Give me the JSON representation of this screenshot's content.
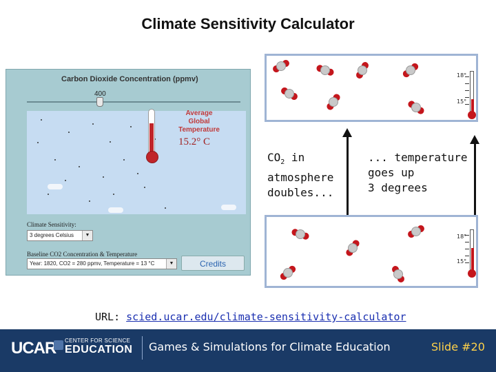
{
  "slide": {
    "title": "Climate Sensitivity Calculator"
  },
  "simulator": {
    "title": "Carbon Dioxide Concentration (ppmv)",
    "slider_value": "400",
    "avg_label_line1": "Average",
    "avg_label_line2": "Global",
    "avg_label_line3": "Temperature",
    "avg_temperature": "15.2° C",
    "sensitivity_label": "Climate Sensitivity:",
    "sensitivity_value": "3 degrees Celsius",
    "baseline_label": "Baseline CO2 Concentration & Temperature",
    "baseline_value": "Year: 1820, CO2 = 280 ppmv, Temperature = 13 °C",
    "credits_button": "Credits"
  },
  "diagram": {
    "top_thermo_high": "18°",
    "top_thermo_low": "15°",
    "bottom_thermo_high": "18°",
    "bottom_thermo_low": "15°",
    "left_caption_co2": "CO",
    "left_caption_sub": "2",
    "left_caption_rest": " in",
    "left_caption_line2": "atmosphere",
    "left_caption_line3": "doubles...",
    "right_caption_line1": "... temperature",
    "right_caption_line2": "goes up",
    "right_caption_line3": "3 degrees"
  },
  "url": {
    "prefix": "URL: ",
    "link": "scied.ucar.edu/climate-sensitivity-calculator"
  },
  "footer": {
    "logo": "UCAR",
    "center_line1": "CENTER FOR SCIENCE",
    "center_line2": "EDUCATION",
    "text": "Games & Simulations for Climate Education",
    "slide_number": "Slide #20"
  }
}
